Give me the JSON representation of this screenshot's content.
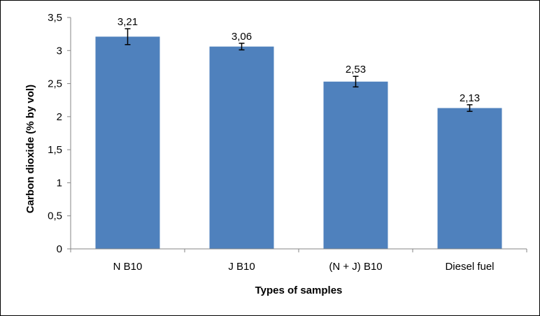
{
  "chart_data": {
    "type": "bar",
    "categories": [
      "N B10",
      "J B10",
      "(N + J) B10",
      "Diesel fuel"
    ],
    "values": [
      3.21,
      3.06,
      2.53,
      2.13
    ],
    "value_labels": [
      "3,21",
      "3,06",
      "2,53",
      "2,13"
    ],
    "error": [
      0.12,
      0.05,
      0.08,
      0.05
    ],
    "xlabel": "Types of samples",
    "ylabel": "Carbon dioxide (% by vol)",
    "ylim": [
      0,
      3.5
    ],
    "yticks": [
      0,
      0.5,
      1,
      1.5,
      2,
      2.5,
      3,
      3.5
    ],
    "ytick_labels": [
      "0",
      "0,5",
      "1",
      "1,5",
      "2",
      "2,5",
      "3",
      "3,5"
    ],
    "grid": false,
    "legend": false,
    "bar_color": "#4F81BD"
  }
}
